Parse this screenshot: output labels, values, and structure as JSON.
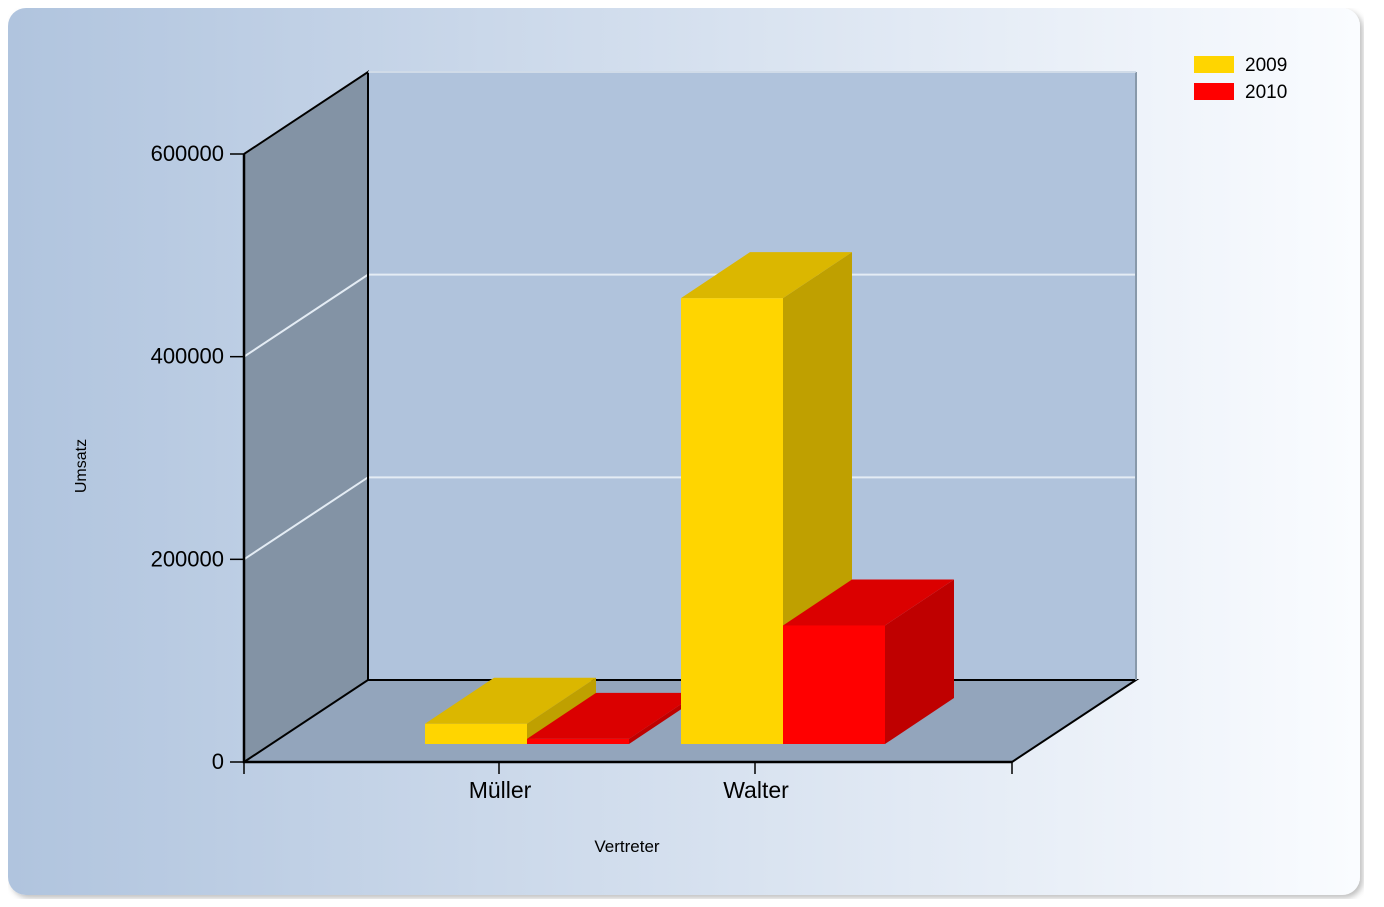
{
  "chart_data": {
    "type": "bar",
    "style": "3d",
    "categories": [
      "Müller",
      "Walter"
    ],
    "series": [
      {
        "name": "2009",
        "values": [
          20000,
          440000
        ],
        "color": "#FFD500"
      },
      {
        "name": "2010",
        "values": [
          5000,
          117000
        ],
        "color": "#FF0000"
      }
    ],
    "xlabel": "Vertreter",
    "ylabel": "Umsatz",
    "ylim": [
      0,
      600000
    ],
    "yticks": [
      0,
      200000,
      400000,
      600000
    ],
    "ytick_labels": [
      "0",
      "200000",
      "400000",
      "600000"
    ],
    "grid": true,
    "legend": "top-right",
    "colors": {
      "panel_start": "#B0C4DE",
      "panel_end": "#FAFCFF",
      "back_wall": "#B0C3DC",
      "side_wall": "#8393A5",
      "floor": "#93A5BC",
      "grid": "#E4ECF4"
    }
  }
}
